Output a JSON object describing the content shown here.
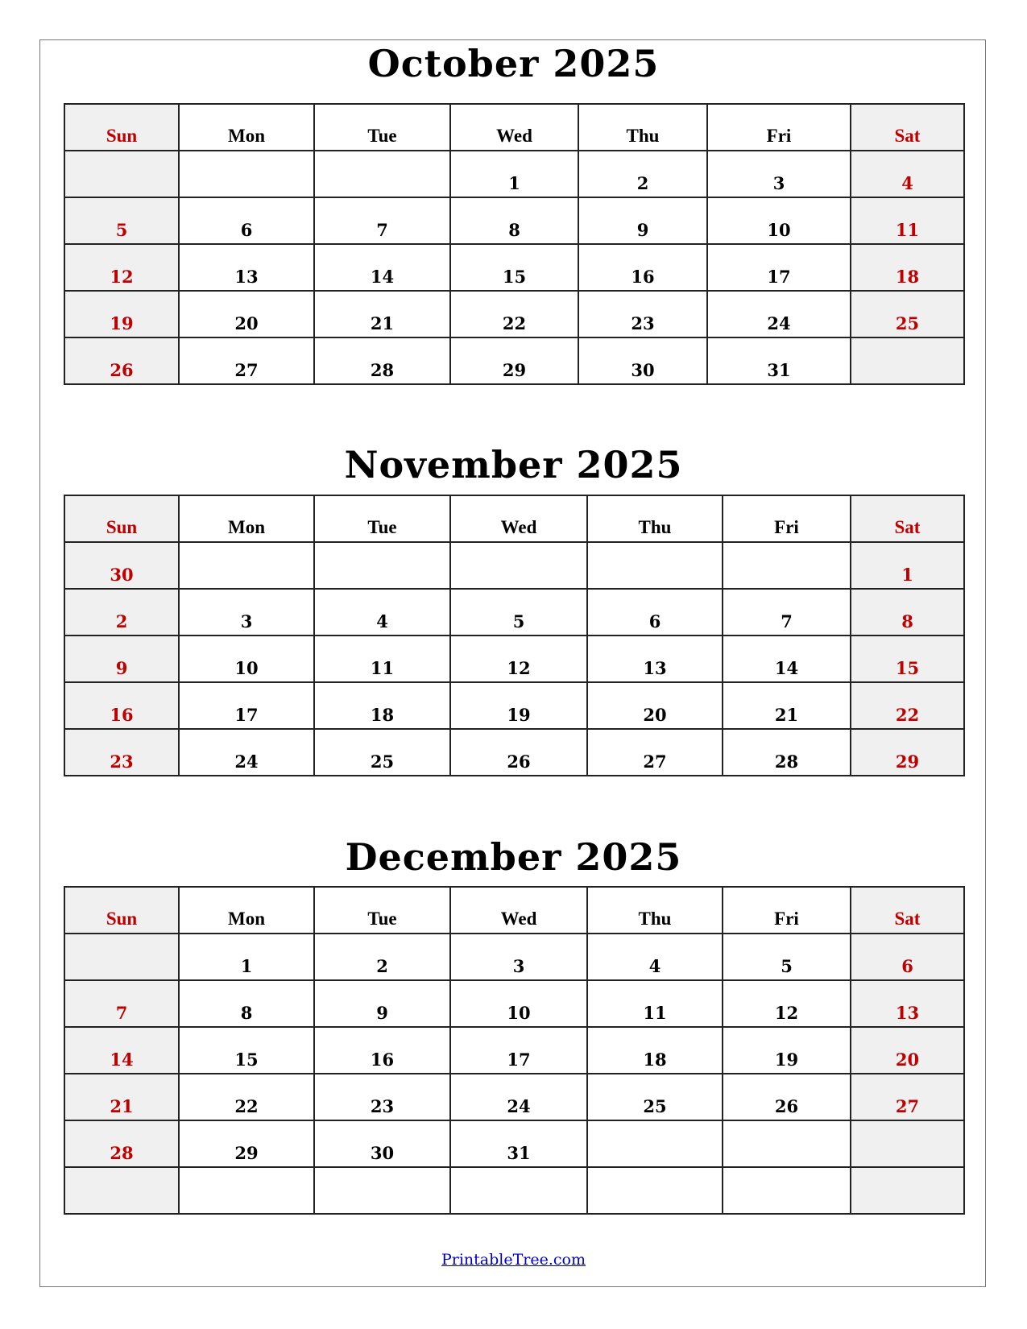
{
  "weekdays": [
    "Sun",
    "Mon",
    "Tue",
    "Wed",
    "Thu",
    "Fri",
    "Sat"
  ],
  "colors": {
    "weekend_text": "#c00000",
    "weekend_bg": "#f0f0f0"
  },
  "months": [
    {
      "title": "October 2025",
      "weeks": [
        [
          "",
          "",
          "",
          "1",
          "2",
          "3",
          "4"
        ],
        [
          "5",
          "6",
          "7",
          "8",
          "9",
          "10",
          "11"
        ],
        [
          "12",
          "13",
          "14",
          "15",
          "16",
          "17",
          "18"
        ],
        [
          "19",
          "20",
          "21",
          "22",
          "23",
          "24",
          "25"
        ],
        [
          "26",
          "27",
          "28",
          "29",
          "30",
          "31",
          ""
        ]
      ]
    },
    {
      "title": "November 2025",
      "weeks": [
        [
          "30",
          "",
          "",
          "",
          "",
          "",
          "1"
        ],
        [
          "2",
          "3",
          "4",
          "5",
          "6",
          "7",
          "8"
        ],
        [
          "9",
          "10",
          "11",
          "12",
          "13",
          "14",
          "15"
        ],
        [
          "16",
          "17",
          "18",
          "19",
          "20",
          "21",
          "22"
        ],
        [
          "23",
          "24",
          "25",
          "26",
          "27",
          "28",
          "29"
        ]
      ]
    },
    {
      "title": "December 2025",
      "weeks": [
        [
          "",
          "1",
          "2",
          "3",
          "4",
          "5",
          "6"
        ],
        [
          "7",
          "8",
          "9",
          "10",
          "11",
          "12",
          "13"
        ],
        [
          "14",
          "15",
          "16",
          "17",
          "18",
          "19",
          "20"
        ],
        [
          "21",
          "22",
          "23",
          "24",
          "25",
          "26",
          "27"
        ],
        [
          "28",
          "29",
          "30",
          "31",
          "",
          "",
          ""
        ],
        [
          "",
          "",
          "",
          "",
          "",
          "",
          ""
        ]
      ]
    }
  ],
  "footer": {
    "link_text": "PrintableTree.com"
  }
}
